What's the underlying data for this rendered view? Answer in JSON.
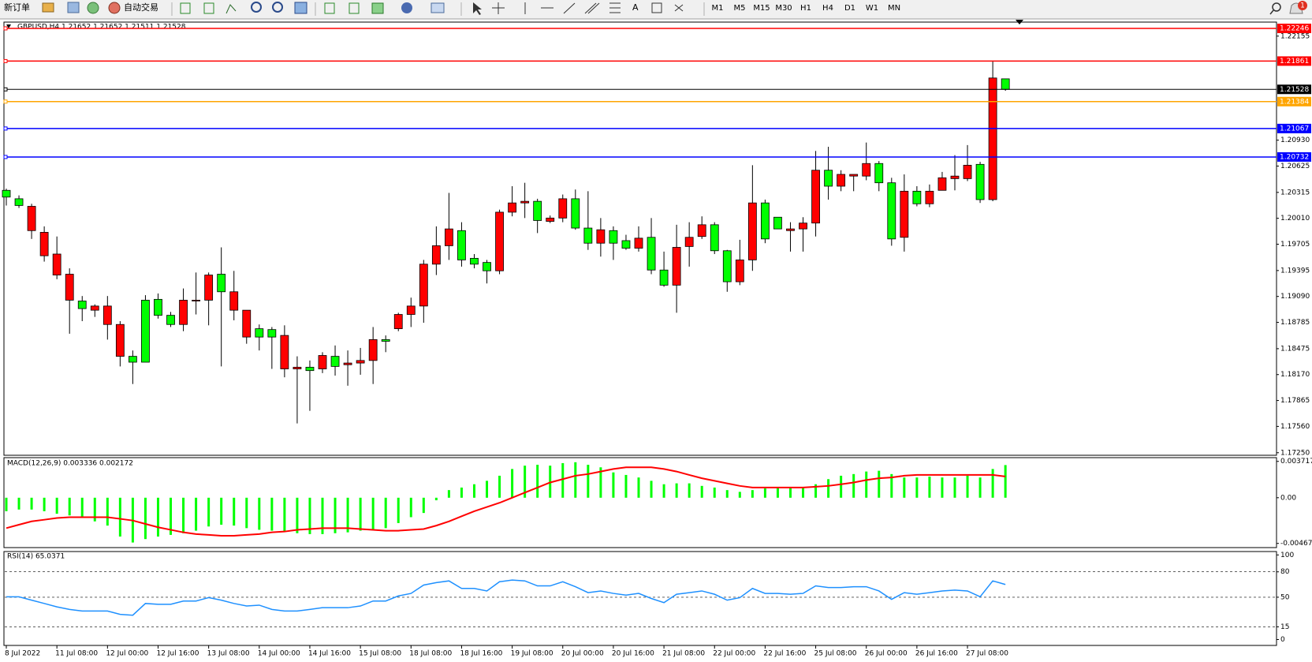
{
  "toolbar": {
    "new_order": "新订单",
    "auto_trading": "自动交易",
    "text_tool": "A",
    "timeframes": [
      "M1",
      "M5",
      "M15",
      "M30",
      "H1",
      "H4",
      "D1",
      "W1",
      "MN"
    ],
    "badge": "1"
  },
  "chart_data": [
    {
      "type": "candlestick",
      "title": "GBPUSD,H4  1.21652 1.21652 1.21511 1.21528",
      "categories": [
        "8 Jul 2022",
        null,
        null,
        null,
        "11 Jul 08:00",
        null,
        null,
        null,
        "12 Jul 00:00",
        null,
        null,
        null,
        "12 Jul 16:00",
        null,
        null,
        null,
        "13 Jul 08:00",
        null,
        null,
        null,
        "14 Jul 00:00",
        null,
        null,
        null,
        "14 Jul 16:00",
        null,
        null,
        null,
        "15 Jul 08:00",
        null,
        null,
        null,
        "18 Jul 08:00",
        null,
        null,
        null,
        "18 Jul 16:00",
        null,
        null,
        null,
        "19 Jul 08:00",
        null,
        null,
        null,
        "20 Jul 00:00",
        null,
        null,
        null,
        "20 Jul 16:00",
        null,
        null,
        null,
        "21 Jul 08:00",
        null,
        null,
        null,
        "22 Jul 00:00",
        null,
        null,
        null,
        "22 Jul 16:00",
        null,
        null,
        null,
        "25 Jul 08:00",
        null,
        null,
        null,
        "26 Jul 00:00",
        null,
        null,
        null,
        "26 Jul 16:00",
        null,
        null,
        null,
        "27 Jul 08:00",
        null,
        null,
        null
      ],
      "open": [
        1.20339,
        1.2024,
        1.19865,
        1.19569,
        1.19342,
        1.19046,
        1.19036,
        1.18928,
        1.1876,
        1.18385,
        1.18385,
        1.19046,
        1.19056,
        1.18868,
        1.1876,
        1.19036,
        1.19046,
        1.19352,
        1.18928,
        1.18612,
        1.1871,
        1.187,
        1.18237,
        1.18237,
        1.18257,
        1.18237,
        1.18385,
        1.18286,
        1.18306,
        1.18336,
        1.18582,
        1.1871,
        1.18878,
        1.18977,
        1.1947,
        1.19687,
        1.19865,
        1.19539,
        1.1949,
        1.19392,
        1.20082,
        1.20191,
        1.2021,
        1.19974,
        1.20013,
        1.2024,
        1.19895,
        1.19717,
        1.19865,
        1.19747,
        1.19658,
        1.19786,
        1.19401,
        1.19223,
        1.19678,
        1.19796,
        1.19934,
        1.19628,
        1.19263,
        1.1952,
        1.20191,
        1.20023,
        1.19865,
        1.19885,
        1.19954,
        1.20576,
        1.20388,
        1.20507,
        1.20507,
        1.20655,
        1.20428,
        1.19786,
        1.20329,
        1.20181,
        1.20339,
        1.20477,
        1.20477,
        1.20645,
        1.2023,
        1.21652
      ],
      "high": [
        1.20359,
        1.2028,
        1.20181,
        1.19915,
        1.19796,
        1.19421,
        1.19095,
        1.18997,
        1.19095,
        1.18799,
        1.18454,
        1.19105,
        1.19125,
        1.18908,
        1.19184,
        1.19372,
        1.19372,
        1.19668,
        1.19391,
        1.18928,
        1.1876,
        1.1873,
        1.1875,
        1.18385,
        1.18336,
        1.18434,
        1.18513,
        1.18454,
        1.18484,
        1.1873,
        1.18631,
        1.18898,
        1.19076,
        1.1952,
        1.19915,
        1.20309,
        1.19964,
        1.19589,
        1.1952,
        1.20112,
        1.20388,
        1.20428,
        1.2024,
        1.20043,
        1.2029,
        1.20349,
        1.20329,
        1.20013,
        1.19915,
        1.19816,
        1.19915,
        1.20013,
        1.19618,
        1.19934,
        1.19964,
        1.20033,
        1.19964,
        1.19638,
        1.19757,
        1.20635,
        1.2023,
        1.20023,
        1.19964,
        1.20023,
        1.20803,
        1.20852,
        1.20576,
        1.20527,
        1.20902,
        1.20684,
        1.20487,
        1.20527,
        1.20388,
        1.20408,
        1.20556,
        1.20754,
        1.20872,
        1.20675,
        1.21861,
        1.21652
      ],
      "low": [
        1.2016,
        1.20132,
        1.19767,
        1.195,
        1.19293,
        1.18651,
        1.18799,
        1.18849,
        1.18582,
        1.18266,
        1.18059,
        1.18316,
        1.18829,
        1.1873,
        1.18681,
        1.18878,
        1.1875,
        1.18266,
        1.18809,
        1.18533,
        1.18454,
        1.18237,
        1.18138,
        1.17595,
        1.17743,
        1.18187,
        1.18158,
        1.18039,
        1.18168,
        1.18059,
        1.18434,
        1.18681,
        1.1873,
        1.1878,
        1.19342,
        1.1952,
        1.19441,
        1.19421,
        1.19243,
        1.19352,
        1.20033,
        1.20013,
        1.19836,
        1.19954,
        1.19964,
        1.19875,
        1.19638,
        1.19559,
        1.1952,
        1.19638,
        1.19618,
        1.19352,
        1.19204,
        1.18898,
        1.19441,
        1.19767,
        1.19589,
        1.19145,
        1.19223,
        1.19391,
        1.19717,
        1.19885,
        1.19618,
        1.19618,
        1.19796,
        1.2023,
        1.20329,
        1.20329,
        1.20458,
        1.20329,
        1.19687,
        1.19618,
        1.20151,
        1.20141,
        1.20339,
        1.20339,
        1.20448,
        1.20191,
        1.20211,
        1.21511
      ],
      "close": [
        1.2026,
        1.20161,
        1.20151,
        1.19845,
        1.19589,
        1.19352,
        1.18947,
        1.18977,
        1.18977,
        1.1876,
        1.18316,
        1.18316,
        1.18868,
        1.1876,
        1.19046,
        1.19046,
        1.19342,
        1.19145,
        1.19145,
        1.18928,
        1.18612,
        1.18612,
        1.18631,
        1.18257,
        1.18217,
        1.18395,
        1.18266,
        1.18306,
        1.18336,
        1.18582,
        1.18562,
        1.18878,
        1.18977,
        1.1947,
        1.19687,
        1.19885,
        1.1952,
        1.1947,
        1.19392,
        1.20082,
        1.20191,
        1.2021,
        1.19984,
        1.20013,
        1.2024,
        1.19895,
        1.19717,
        1.19875,
        1.19717,
        1.19658,
        1.19776,
        1.19401,
        1.19223,
        1.19668,
        1.19786,
        1.19934,
        1.19628,
        1.19263,
        1.1952,
        1.20191,
        1.19767,
        1.19885,
        1.19885,
        1.19954,
        1.20576,
        1.20388,
        1.20527,
        1.20527,
        1.20655,
        1.20428,
        1.19767,
        1.20329,
        1.20181,
        1.20329,
        1.20487,
        1.20507,
        1.20635,
        1.2023,
        1.21662,
        1.21528
      ],
      "bull_color": "#ff0000",
      "bear_color": "#00ff00",
      "ylim": [
        1.1722,
        1.2232
      ],
      "yticks": [
        1.22155,
        {
          "value": 1.2093,
          "label": "1.20930"
        },
        1.20625,
        1.20315,
        {
          "value": 1.2001,
          "label": "1.20010"
        },
        1.19705,
        1.19395,
        {
          "value": 1.1909,
          "label": "1.19090"
        },
        1.18785,
        1.18475,
        {
          "value": 1.1817,
          "label": "1.18170"
        },
        1.17865,
        {
          "value": 1.1756,
          "label": "1.17560"
        },
        {
          "value": 1.1725,
          "label": "1.17250"
        }
      ],
      "hlines": [
        {
          "value": 1.22246,
          "color": "#ff0000"
        },
        {
          "value": 1.21861,
          "color": "#ff0000"
        },
        {
          "value": 1.21528,
          "color": "#000000"
        },
        {
          "value": 1.21384,
          "color": "#ffa500"
        },
        {
          "value": 1.21067,
          "color": "#0000ff"
        },
        {
          "value": 1.20732,
          "color": "#0000ff"
        }
      ],
      "grid": false
    },
    {
      "type": "macd",
      "title": "MACD(12,26,9) 0.003336 0.002172",
      "histogram": [
        -0.00138,
        -0.00121,
        -0.00121,
        -0.00138,
        -0.00164,
        -0.00181,
        -0.00207,
        -0.00242,
        -0.00285,
        -0.00397,
        -0.00458,
        -0.00423,
        -0.00397,
        -0.0038,
        -0.00363,
        -0.00337,
        -0.00294,
        -0.00276,
        -0.00285,
        -0.00311,
        -0.00328,
        -0.00337,
        -0.00346,
        -0.00363,
        -0.00372,
        -0.00372,
        -0.00363,
        -0.00354,
        -0.00337,
        -0.00328,
        -0.00311,
        -0.00259,
        -0.00199,
        -0.00156,
        -0.00026,
        0.00078,
        0.00104,
        0.00138,
        0.00173,
        0.00225,
        0.00294,
        0.00328,
        0.00337,
        0.00328,
        0.00354,
        0.00363,
        0.00337,
        0.00311,
        0.00259,
        0.00233,
        0.00207,
        0.00173,
        0.00138,
        0.00147,
        0.00147,
        0.00121,
        0.00104,
        0.00078,
        0.0006,
        0.00078,
        0.00095,
        0.00104,
        0.00104,
        0.00104,
        0.00138,
        0.0019,
        0.00225,
        0.00242,
        0.00268,
        0.00276,
        0.00242,
        0.00207,
        0.00207,
        0.00216,
        0.00207,
        0.00207,
        0.00225,
        0.00207,
        0.00294,
        0.00334
      ],
      "signal": [
        -0.00311,
        -0.00276,
        -0.00242,
        -0.00225,
        -0.00207,
        -0.00199,
        -0.00199,
        -0.00199,
        -0.00199,
        -0.00216,
        -0.00233,
        -0.00268,
        -0.00302,
        -0.00328,
        -0.00354,
        -0.00372,
        -0.0038,
        -0.00389,
        -0.00389,
        -0.0038,
        -0.00372,
        -0.00354,
        -0.00346,
        -0.00328,
        -0.0032,
        -0.00311,
        -0.00311,
        -0.00311,
        -0.0032,
        -0.00328,
        -0.00337,
        -0.00337,
        -0.00328,
        -0.0032,
        -0.00285,
        -0.00242,
        -0.0019,
        -0.00138,
        -0.00095,
        -0.00052,
        0,
        0.00052,
        0.00104,
        0.00156,
        0.0019,
        0.00225,
        0.00242,
        0.00268,
        0.00294,
        0.00311,
        0.00311,
        0.00311,
        0.00294,
        0.00268,
        0.00233,
        0.00199,
        0.00173,
        0.00147,
        0.00121,
        0.00104,
        0.00104,
        0.00104,
        0.00104,
        0.00104,
        0.00112,
        0.00121,
        0.00138,
        0.00156,
        0.00181,
        0.00199,
        0.00207,
        0.00225,
        0.00233,
        0.00233,
        0.00233,
        0.00233,
        0.00233,
        0.00233,
        0.00233,
        0.00217
      ],
      "histogram_color": "#00ff00",
      "signal_color": "#ff0000",
      "ylim": [
        -0.0051,
        0.0041
      ],
      "yticks": [
        0.003717,
        {
          "value": 0,
          "label": "0.00"
        },
        -0.004672
      ],
      "grid": false
    },
    {
      "type": "line",
      "title": "RSI(14) 65.0371",
      "values": [
        50.5,
        50.5,
        46.5,
        42.6,
        38.6,
        35.6,
        33.7,
        33.7,
        33.7,
        29.7,
        28.7,
        42.6,
        41.6,
        41.6,
        45.5,
        45.5,
        49.5,
        46.5,
        42.6,
        39.6,
        40.6,
        35.6,
        33.7,
        33.7,
        35.6,
        37.6,
        37.6,
        37.6,
        39.6,
        45.5,
        45.5,
        51.5,
        54.5,
        64.4,
        67.3,
        69.3,
        60.4,
        60.4,
        57.4,
        68.3,
        70.3,
        69.3,
        63.4,
        63.4,
        68.3,
        62.4,
        55.4,
        57.4,
        54.5,
        52.5,
        54.5,
        48.5,
        43.6,
        53.5,
        55.4,
        57.4,
        53.5,
        46.5,
        49.5,
        60.4,
        54.5,
        54.5,
        53.5,
        54.5,
        63.4,
        61.4,
        61.4,
        62.4,
        62.4,
        57.4,
        47.5,
        55.4,
        53.5,
        55.4,
        57.4,
        58.4,
        57.4,
        50.5,
        69.3,
        65.04
      ],
      "color": "#1e90ff",
      "ylim": [
        -7,
        104
      ],
      "yticks": [
        100,
        80,
        50,
        15,
        0
      ],
      "grid": true
    }
  ]
}
